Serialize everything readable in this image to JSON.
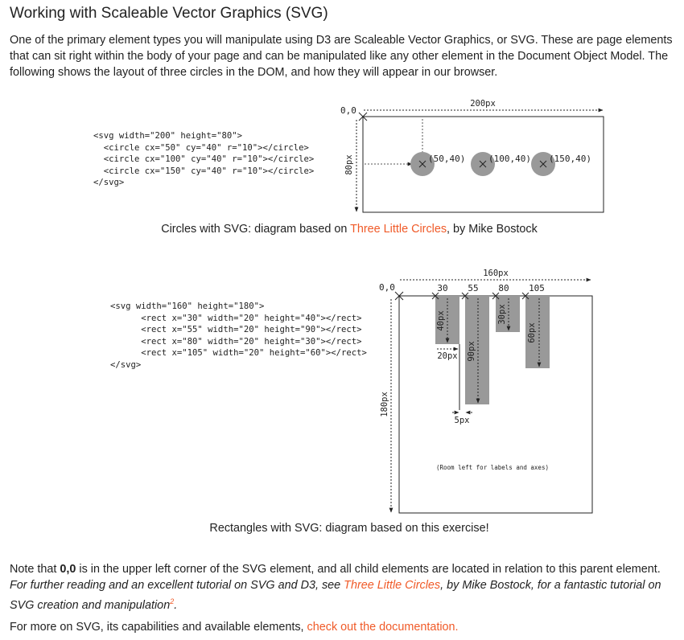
{
  "page": {
    "heading": "Working with Scaleable Vector Graphics (SVG)",
    "intro": "One of the primary element types you will manipulate using D3 are Scaleable Vector Graphics, or SVG. These are page elements that can sit right within the body of your page and can be manipulated like any other element in the Document Object Model. The following shows the layout of three circles in the DOM, and how they will appear in our browser."
  },
  "circles_figure": {
    "code": "<svg width=\"200\" height=\"80\">\n  <circle cx=\"50\" cy=\"40\" r=\"10\"></circle>\n  <circle cx=\"100\" cy=\"40\" r=\"10\"></circle>\n  <circle cx=\"150\" cy=\"40\" r=\"10\"></circle>\n</svg>",
    "origin_label": "0,0",
    "width_label": "200px",
    "height_label": "80px",
    "point_labels": [
      "(50,40)",
      "(100,40)",
      "(150,40)"
    ],
    "caption_prefix": "Circles with SVG: diagram based on ",
    "caption_link": "Three Little Circles",
    "caption_suffix": ", by Mike Bostock"
  },
  "rects_figure": {
    "code": "<svg width=\"160\" height=\"180\">\n      <rect x=\"30\" width=\"20\" height=\"40\"></rect>\n      <rect x=\"55\" width=\"20\" height=\"90\"></rect>\n      <rect x=\"80\" width=\"20\" height=\"30\"></rect>\n      <rect x=\"105\" width=\"20\" height=\"60\"></rect>\n</svg>",
    "origin_label": "0,0",
    "width_label": "160px",
    "height_label": "180px",
    "x_labels": [
      "30",
      "55",
      "80",
      "105"
    ],
    "height_labels": [
      "40px",
      "90px",
      "30px",
      "60px"
    ],
    "bar_width_label": "20px",
    "gap_label": "5px",
    "room_note": "(Room left for labels and axes)",
    "caption": "Rectangles with SVG: diagram based on this exercise!"
  },
  "note": {
    "t1": "Note that ",
    "bold": "0,0",
    "t2": " is in the upper left corner of the SVG element, and all child elements are located in relation to this parent element. ",
    "t3": "For further reading and an excellent tutorial on SVG and D3, see ",
    "link": "Three Little Circles",
    "t4": ", by Mike Bostock, for a fantastic tutorial on SVG creation and manipulation",
    "sup": "2",
    "t5": "."
  },
  "more": {
    "text": "For more on SVG, its capabilities and available elements, ",
    "link": "check out the documentation."
  },
  "colors": {
    "link": "#f05a28",
    "shape_fill": "#999999",
    "text": "#222222"
  }
}
